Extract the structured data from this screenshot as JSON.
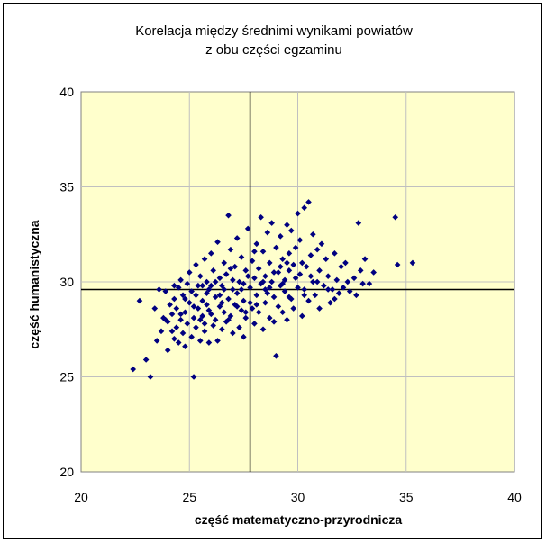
{
  "chart_data": {
    "type": "scatter",
    "title": [
      "Korelacja między średnimi wynikami powiatów",
      "z obu części egzaminu"
    ],
    "xlabel": "część matematyczno-przyrodnicza",
    "ylabel": "część humanistyczna",
    "xlim": [
      20,
      40
    ],
    "ylim": [
      20,
      40
    ],
    "xticks": [
      20,
      25,
      30,
      35,
      40
    ],
    "yticks": [
      20,
      25,
      30,
      35,
      40
    ],
    "grid": true,
    "reference_lines": {
      "x_mean": 27.8,
      "y_mean": 29.6
    },
    "colors": {
      "plot_background": "#ffffcc",
      "marker": "#000080",
      "grid": "#c0c0c0",
      "reference_line": "#000000"
    },
    "series": [
      {
        "marker": "diamond",
        "points": [
          [
            22.4,
            25.4
          ],
          [
            23.0,
            25.9
          ],
          [
            23.2,
            25.0
          ],
          [
            22.7,
            29.0
          ],
          [
            23.4,
            28.6
          ],
          [
            23.5,
            26.9
          ],
          [
            23.7,
            27.4
          ],
          [
            23.8,
            28.1
          ],
          [
            23.9,
            29.5
          ],
          [
            24.0,
            27.9
          ],
          [
            24.0,
            26.4
          ],
          [
            24.2,
            28.3
          ],
          [
            24.3,
            27.0
          ],
          [
            24.3,
            29.1
          ],
          [
            24.4,
            28.6
          ],
          [
            24.4,
            27.6
          ],
          [
            24.5,
            29.7
          ],
          [
            24.5,
            26.8
          ],
          [
            24.6,
            28.0
          ],
          [
            24.6,
            30.1
          ],
          [
            24.7,
            27.3
          ],
          [
            24.7,
            29.3
          ],
          [
            24.8,
            28.4
          ],
          [
            24.8,
            26.6
          ],
          [
            24.9,
            29.9
          ],
          [
            24.9,
            27.8
          ],
          [
            25.0,
            28.9
          ],
          [
            25.0,
            30.5
          ],
          [
            25.1,
            27.1
          ],
          [
            25.1,
            29.5
          ],
          [
            25.2,
            25.0
          ],
          [
            25.2,
            28.1
          ],
          [
            25.3,
            30.9
          ],
          [
            25.3,
            27.6
          ],
          [
            25.4,
            29.8
          ],
          [
            25.4,
            28.6
          ],
          [
            25.5,
            26.9
          ],
          [
            25.5,
            30.3
          ],
          [
            25.6,
            28.2
          ],
          [
            25.6,
            29.0
          ],
          [
            25.7,
            31.2
          ],
          [
            25.7,
            27.4
          ],
          [
            25.8,
            28.8
          ],
          [
            25.8,
            30.0
          ],
          [
            25.9,
            26.8
          ],
          [
            25.9,
            29.6
          ],
          [
            26.0,
            28.3
          ],
          [
            26.0,
            31.5
          ],
          [
            26.1,
            27.7
          ],
          [
            26.1,
            30.6
          ],
          [
            26.2,
            29.2
          ],
          [
            26.2,
            28.0
          ],
          [
            26.3,
            32.1
          ],
          [
            26.3,
            26.9
          ],
          [
            26.4,
            30.2
          ],
          [
            26.4,
            28.7
          ],
          [
            26.5,
            29.8
          ],
          [
            26.5,
            27.5
          ],
          [
            26.6,
            31.0
          ],
          [
            26.6,
            28.4
          ],
          [
            26.7,
            30.4
          ],
          [
            26.7,
            27.9
          ],
          [
            26.8,
            33.5
          ],
          [
            26.8,
            29.1
          ],
          [
            26.9,
            28.2
          ],
          [
            26.9,
            31.7
          ],
          [
            27.0,
            29.6
          ],
          [
            27.0,
            27.3
          ],
          [
            27.1,
            30.8
          ],
          [
            27.1,
            28.8
          ],
          [
            27.2,
            32.3
          ],
          [
            27.2,
            29.4
          ],
          [
            27.3,
            27.6
          ],
          [
            27.3,
            30.0
          ],
          [
            27.4,
            28.5
          ],
          [
            27.4,
            31.3
          ],
          [
            27.5,
            29.0
          ],
          [
            27.5,
            27.1
          ],
          [
            27.6,
            30.6
          ],
          [
            27.6,
            28.1
          ],
          [
            27.7,
            32.8
          ],
          [
            27.8,
            29.7
          ],
          [
            27.9,
            28.6
          ],
          [
            27.9,
            31.1
          ],
          [
            28.0,
            30.2
          ],
          [
            28.0,
            27.8
          ],
          [
            28.1,
            29.3
          ],
          [
            28.1,
            32.0
          ],
          [
            28.2,
            28.4
          ],
          [
            28.2,
            30.7
          ],
          [
            28.3,
            33.4
          ],
          [
            28.3,
            29.9
          ],
          [
            28.4,
            27.5
          ],
          [
            28.4,
            31.6
          ],
          [
            28.5,
            28.9
          ],
          [
            28.5,
            30.3
          ],
          [
            28.6,
            32.6
          ],
          [
            28.6,
            29.4
          ],
          [
            28.7,
            28.1
          ],
          [
            28.7,
            31.0
          ],
          [
            28.8,
            30.0
          ],
          [
            28.8,
            33.1
          ],
          [
            28.9,
            29.2
          ],
          [
            28.9,
            27.9
          ],
          [
            29.0,
            26.1
          ],
          [
            29.0,
            31.8
          ],
          [
            29.1,
            30.5
          ],
          [
            29.1,
            28.7
          ],
          [
            29.2,
            29.8
          ],
          [
            29.2,
            32.4
          ],
          [
            29.3,
            31.2
          ],
          [
            29.3,
            28.4
          ],
          [
            29.4,
            30.1
          ],
          [
            29.4,
            29.5
          ],
          [
            29.5,
            33.0
          ],
          [
            29.5,
            28.0
          ],
          [
            29.6,
            31.5
          ],
          [
            29.6,
            30.6
          ],
          [
            29.7,
            29.1
          ],
          [
            29.7,
            32.7
          ],
          [
            29.8,
            30.9
          ],
          [
            29.8,
            28.6
          ],
          [
            29.9,
            31.8
          ],
          [
            30.0,
            33.6
          ],
          [
            30.0,
            29.7
          ],
          [
            30.1,
            30.4
          ],
          [
            30.1,
            32.2
          ],
          [
            30.2,
            31.0
          ],
          [
            30.2,
            28.2
          ],
          [
            30.3,
            29.6
          ],
          [
            30.3,
            33.9
          ],
          [
            30.4,
            30.8
          ],
          [
            30.5,
            34.2
          ],
          [
            30.5,
            29.0
          ],
          [
            30.6,
            31.4
          ],
          [
            30.7,
            30.0
          ],
          [
            30.7,
            32.5
          ],
          [
            30.8,
            29.3
          ],
          [
            30.9,
            31.7
          ],
          [
            31.0,
            28.6
          ],
          [
            31.0,
            30.6
          ],
          [
            31.1,
            32.0
          ],
          [
            31.2,
            29.8
          ],
          [
            31.3,
            31.2
          ],
          [
            31.4,
            30.3
          ],
          [
            31.5,
            28.9
          ],
          [
            31.6,
            29.6
          ],
          [
            31.7,
            31.5
          ],
          [
            31.8,
            30.1
          ],
          [
            31.9,
            29.4
          ],
          [
            32.0,
            30.8
          ],
          [
            32.1,
            29.7
          ],
          [
            32.2,
            31.0
          ],
          [
            32.4,
            29.5
          ],
          [
            32.6,
            30.2
          ],
          [
            32.7,
            29.3
          ],
          [
            32.8,
            33.1
          ],
          [
            32.9,
            30.6
          ],
          [
            33.0,
            29.9
          ],
          [
            33.1,
            31.2
          ],
          [
            33.3,
            29.9
          ],
          [
            33.5,
            30.5
          ],
          [
            34.5,
            33.4
          ],
          [
            34.6,
            30.9
          ],
          [
            35.3,
            31.0
          ],
          [
            27.6,
            28.4
          ],
          [
            27.0,
            30.1
          ],
          [
            26.4,
            29.3
          ],
          [
            25.8,
            29.4
          ],
          [
            25.2,
            28.7
          ],
          [
            24.3,
            29.8
          ],
          [
            25.7,
            27.8
          ],
          [
            26.8,
            28.0
          ],
          [
            27.4,
            29.6
          ],
          [
            28.5,
            29.6
          ],
          [
            29.3,
            29.9
          ],
          [
            28.9,
            30.5
          ],
          [
            26.2,
            30.0
          ],
          [
            25.5,
            28.0
          ],
          [
            24.8,
            29.1
          ],
          [
            26.6,
            29.6
          ],
          [
            27.8,
            28.9
          ],
          [
            28.1,
            28.8
          ],
          [
            29.6,
            29.2
          ],
          [
            30.3,
            29.3
          ],
          [
            29.9,
            30.2
          ],
          [
            28.4,
            30.0
          ],
          [
            26.9,
            30.7
          ],
          [
            25.3,
            29.3
          ],
          [
            24.1,
            28.8
          ],
          [
            26.0,
            29.8
          ],
          [
            27.2,
            28.7
          ],
          [
            28.7,
            29.7
          ],
          [
            29.5,
            31.0
          ],
          [
            30.6,
            30.3
          ],
          [
            31.4,
            29.6
          ],
          [
            32.3,
            30.0
          ],
          [
            25.9,
            28.5
          ],
          [
            27.5,
            29.9
          ],
          [
            28.0,
            31.6
          ],
          [
            29.2,
            30.8
          ],
          [
            30.9,
            30.0
          ],
          [
            31.7,
            29.1
          ],
          [
            26.5,
            28.9
          ],
          [
            24.6,
            28.3
          ],
          [
            23.9,
            28.0
          ],
          [
            23.6,
            29.6
          ],
          [
            24.2,
            27.4
          ],
          [
            25.6,
            29.8
          ],
          [
            27.7,
            30.3
          ]
        ]
      }
    ]
  }
}
